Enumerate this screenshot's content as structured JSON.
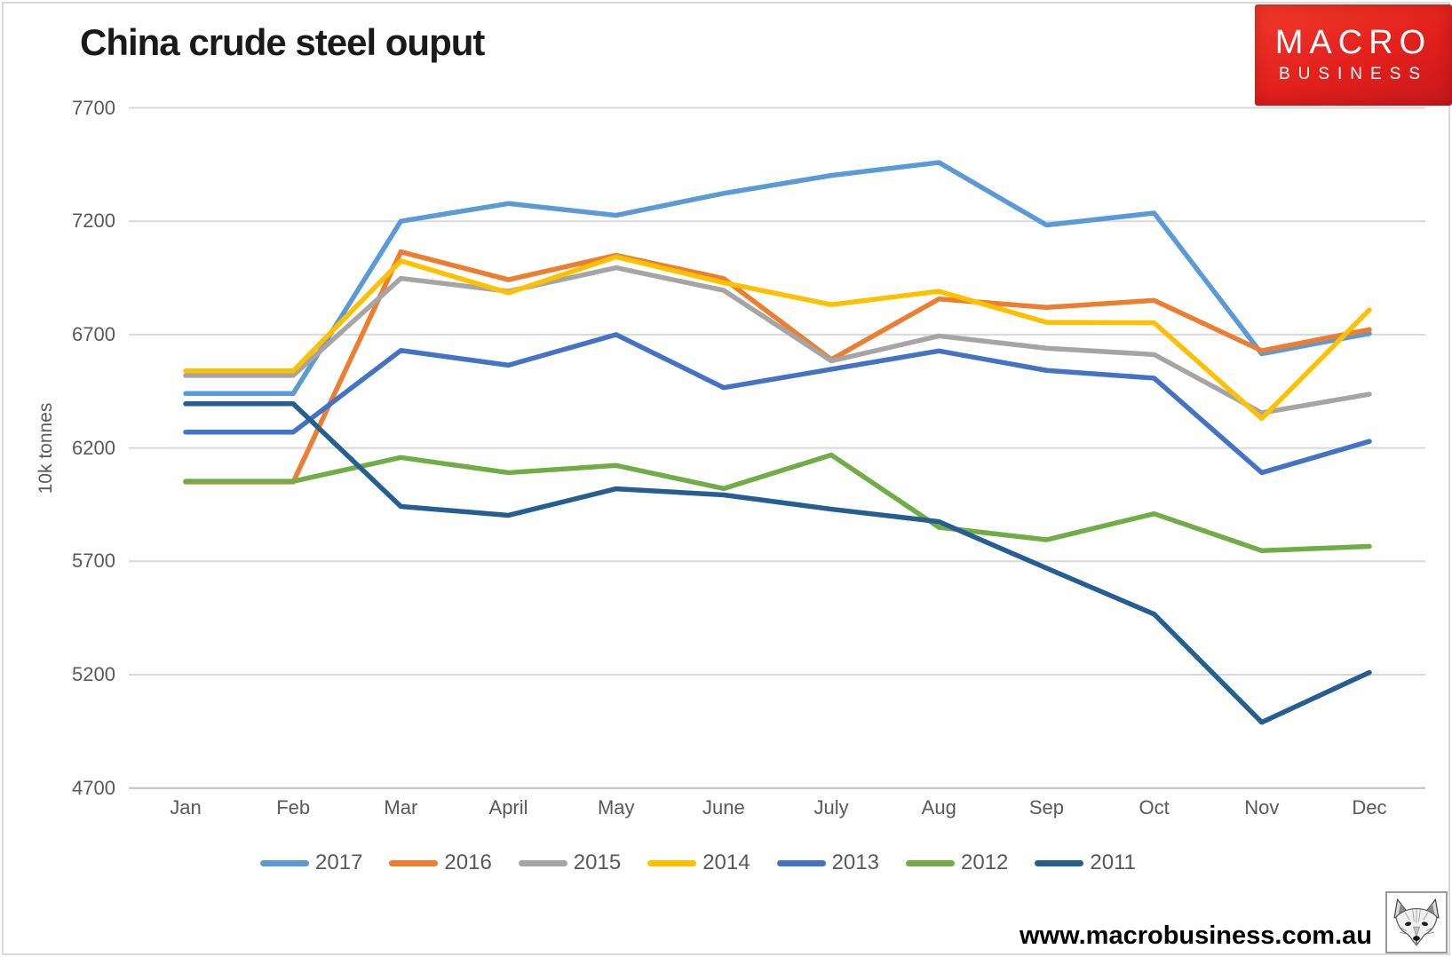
{
  "page": {
    "title": "China crude steel ouput",
    "url": "www.macrobusiness.com.au"
  },
  "branding": {
    "line1": "MACRO",
    "line2": "BUSINESS",
    "bg_color": "#e2201c"
  },
  "colors": {
    "grid": "#D9D9D9",
    "axis": "#BFBFBF",
    "label": "#595959",
    "title_text": "#1a1a1a",
    "frame": "#D9D9D9",
    "url_text": "#000000"
  },
  "chart_data": {
    "type": "line",
    "title": "China crude steel ouput",
    "xlabel": "",
    "ylabel": "10k tonnes",
    "ylim": [
      4700,
      7700
    ],
    "yticks": [
      7700,
      7200,
      6700,
      6200,
      5700,
      5200,
      4700
    ],
    "grid": "horizontal",
    "legend_position": "bottom",
    "categories": [
      "Jan",
      "Feb",
      "Mar",
      "April",
      "May",
      "June",
      "July",
      "Aug",
      "Sep",
      "Oct",
      "Nov",
      "Dec"
    ],
    "series": [
      {
        "name": "2017",
        "color": "#5B9BD5",
        "values": [
          6440,
          6440,
          7200,
          7278,
          7226,
          7323,
          7402,
          7459,
          7183,
          7236,
          6615,
          6705
        ]
      },
      {
        "name": "2016",
        "color": "#ED7D31",
        "values": [
          6050,
          6050,
          7065,
          6942,
          7050,
          6947,
          6590,
          6857,
          6820,
          6851,
          6629,
          6722
        ]
      },
      {
        "name": "2015",
        "color": "#A5A5A5",
        "values": [
          6520,
          6520,
          6948,
          6891,
          6995,
          6895,
          6584,
          6694,
          6640,
          6612,
          6355,
          6437
        ]
      },
      {
        "name": "2014",
        "color": "#FFC000",
        "values": [
          6540,
          6540,
          7025,
          6884,
          7043,
          6929,
          6832,
          6891,
          6754,
          6752,
          6330,
          6809
        ]
      },
      {
        "name": "2013",
        "color": "#4472C4",
        "values": [
          6270,
          6270,
          6630,
          6565,
          6700,
          6466,
          6547,
          6628,
          6542,
          6508,
          6091,
          6229
        ]
      },
      {
        "name": "2012",
        "color": "#70AD47",
        "values": [
          6053,
          6053,
          6158,
          6091,
          6123,
          6021,
          6169,
          5850,
          5795,
          5910,
          5747,
          5766
        ]
      },
      {
        "name": "2011",
        "color": "#255E91",
        "values": [
          6395,
          6395,
          5942,
          5903,
          6020,
          5993,
          5930,
          5875,
          5670,
          5467,
          4990,
          5210
        ]
      }
    ]
  }
}
